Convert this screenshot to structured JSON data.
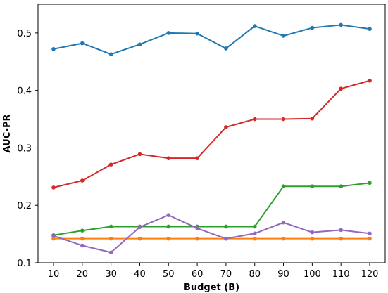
{
  "chart_data": {
    "type": "line",
    "title": "",
    "xlabel": "Budget (B)",
    "ylabel": "AUC-PR",
    "x": [
      10,
      20,
      30,
      40,
      50,
      60,
      70,
      80,
      90,
      100,
      110,
      120
    ],
    "x_ticks": [
      "10",
      "20",
      "30",
      "40",
      "50",
      "60",
      "70",
      "80",
      "90",
      "100",
      "110",
      "120"
    ],
    "ylim": [
      0.1,
      0.55
    ],
    "y_ticks": [
      "0.1",
      "0.2",
      "0.3",
      "0.4",
      "0.5"
    ],
    "y_tick_values": [
      0.1,
      0.2,
      0.3,
      0.4,
      0.5
    ],
    "grid": false,
    "legend": "none",
    "series": [
      {
        "color": "#1f77b4",
        "values": [
          0.472,
          0.482,
          0.463,
          0.48,
          0.5,
          0.499,
          0.473,
          0.512,
          0.495,
          0.509,
          0.514,
          0.507
        ]
      },
      {
        "color": "#ff7f0e",
        "values": [
          0.142,
          0.142,
          0.142,
          0.142,
          0.142,
          0.142,
          0.142,
          0.142,
          0.142,
          0.142,
          0.142,
          0.142
        ]
      },
      {
        "color": "#2ca02c",
        "values": [
          0.148,
          0.156,
          0.163,
          0.163,
          0.163,
          0.163,
          0.163,
          0.163,
          0.233,
          0.233,
          0.233,
          0.239
        ]
      },
      {
        "color": "#d62728",
        "values": [
          0.231,
          0.243,
          0.271,
          0.289,
          0.282,
          0.282,
          0.336,
          0.35,
          0.35,
          0.351,
          0.403,
          0.417
        ]
      },
      {
        "color": "#9467bd",
        "values": [
          0.147,
          0.13,
          0.118,
          0.162,
          0.183,
          0.16,
          0.142,
          0.151,
          0.17,
          0.153,
          0.157,
          0.151
        ]
      }
    ]
  }
}
